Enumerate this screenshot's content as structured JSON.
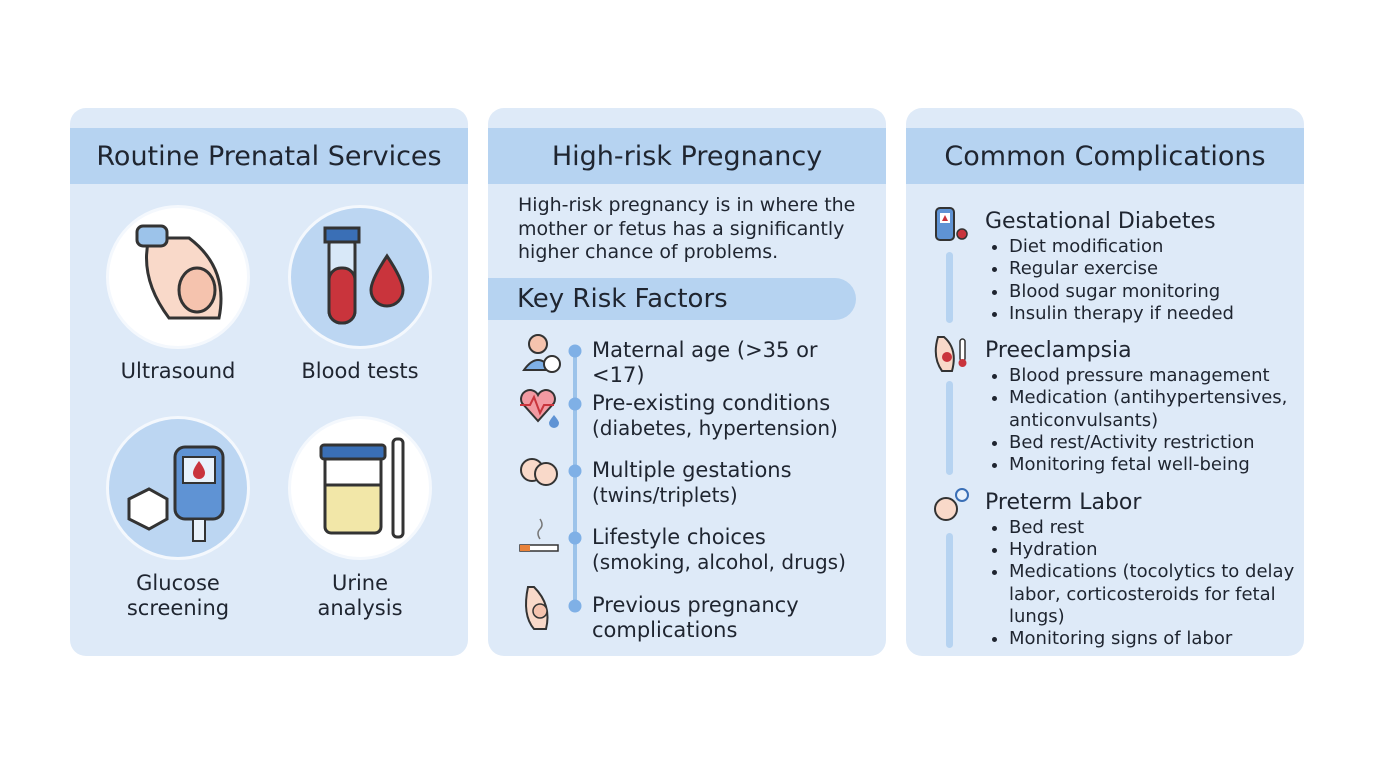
{
  "panels": [
    {
      "title": "Routine Prenatal Services",
      "services": [
        "Ultrasound",
        "Blood tests",
        "Glucose screening",
        "Urine analysis"
      ]
    },
    {
      "title": "High-risk Pregnancy",
      "intro": "High-risk pregnancy is in where the mother or fetus has a significantly higher chance of problems.",
      "subtitle": "Key Risk Factors",
      "factors": [
        {
          "name": "Maternal age (>35 or <17)"
        },
        {
          "name": "Pre-existing conditions",
          "detail": "(diabetes, hypertension)"
        },
        {
          "name": "Multiple gestations",
          "detail": "(twins/triplets)"
        },
        {
          "name": "Lifestyle choices",
          "detail": "(smoking, alcohol, drugs)"
        },
        {
          "name": "Previous pregnancy complications"
        }
      ]
    },
    {
      "title": "Common Complications",
      "complications": [
        {
          "name": "Gestational Diabetes",
          "items": [
            "Diet modification",
            "Regular exercise",
            "Blood sugar monitoring",
            "Insulin therapy if needed"
          ]
        },
        {
          "name": "Preeclampsia",
          "items": [
            "Blood pressure management",
            "Medication (antihypertensives, anticonvulsants)",
            "Bed rest/Activity restriction",
            "Monitoring fetal well-being"
          ]
        },
        {
          "name": "Preterm Labor",
          "items": [
            "Bed rest",
            "Hydration",
            "Medications (tocolytics to delay labor, corticosteroids for fetal lungs)",
            "Monitoring signs of labor"
          ]
        }
      ]
    }
  ]
}
